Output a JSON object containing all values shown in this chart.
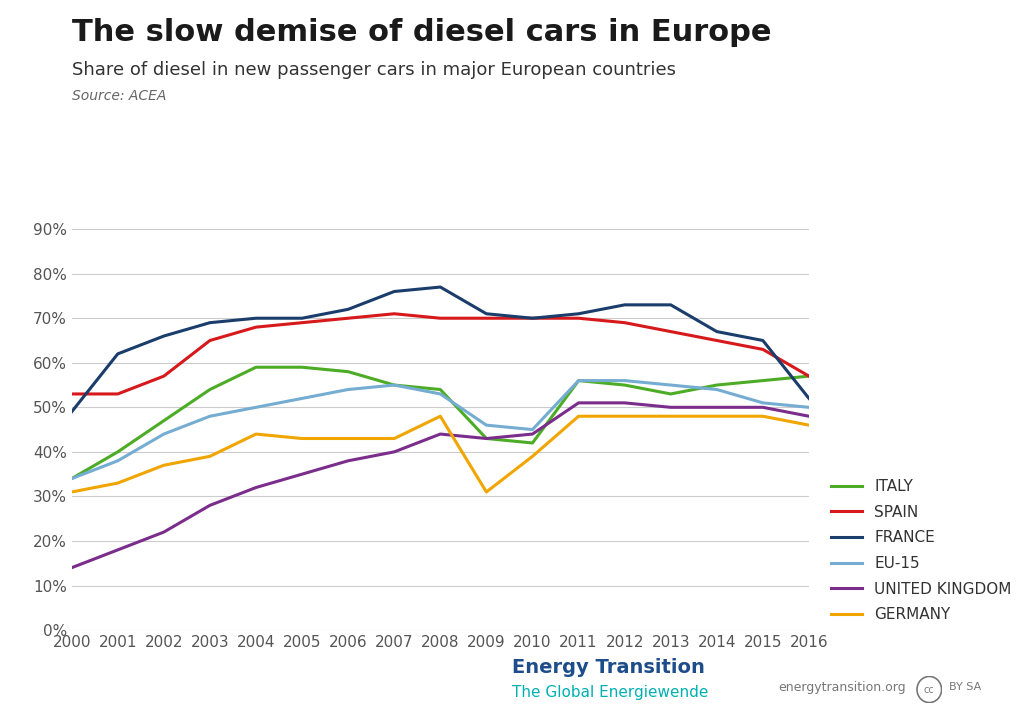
{
  "title": "The slow demise of diesel cars in Europe",
  "subtitle": "Share of diesel in new passenger cars in major European countries",
  "source": "Source: ACEA",
  "years": [
    2000,
    2001,
    2002,
    2003,
    2004,
    2005,
    2006,
    2007,
    2008,
    2009,
    2010,
    2011,
    2012,
    2013,
    2014,
    2015,
    2016
  ],
  "italy": [
    34,
    40,
    47,
    54,
    59,
    59,
    58,
    55,
    54,
    43,
    42,
    56,
    55,
    53,
    55,
    56,
    57
  ],
  "spain": [
    53,
    53,
    57,
    65,
    68,
    69,
    70,
    71,
    70,
    70,
    70,
    70,
    69,
    67,
    65,
    63,
    57
  ],
  "france": [
    49,
    62,
    66,
    69,
    70,
    70,
    72,
    76,
    77,
    71,
    70,
    71,
    73,
    73,
    67,
    65,
    52
  ],
  "eu15": [
    34,
    38,
    44,
    48,
    50,
    52,
    54,
    55,
    53,
    46,
    45,
    56,
    56,
    55,
    54,
    51,
    50
  ],
  "uk": [
    14,
    18,
    22,
    28,
    32,
    35,
    38,
    40,
    44,
    43,
    44,
    51,
    51,
    50,
    50,
    50,
    48
  ],
  "germany": [
    31,
    33,
    37,
    39,
    44,
    43,
    43,
    43,
    48,
    31,
    39,
    48,
    48,
    48,
    48,
    48,
    46
  ],
  "colors": {
    "italy": "#4dac26",
    "spain": "#d7191c",
    "france": "#1a3d6b",
    "eu15": "#74add1",
    "uk": "#7b2d8b",
    "germany": "#f0a500"
  },
  "yticks": [
    0.0,
    0.1,
    0.2,
    0.3,
    0.4,
    0.5,
    0.6,
    0.7,
    0.8,
    0.9
  ],
  "background_color": "#ffffff",
  "grid_color": "#cccccc",
  "title_fontsize": 22,
  "subtitle_fontsize": 13,
  "source_fontsize": 10,
  "legend_fontsize": 11,
  "tick_fontsize": 11,
  "footer_text1": "Energy Transition",
  "footer_text2": "The Global Energiewende",
  "footer_url": "energytransition.org",
  "footer_color1": "#1e4d8c",
  "footer_color2": "#00b0b0"
}
